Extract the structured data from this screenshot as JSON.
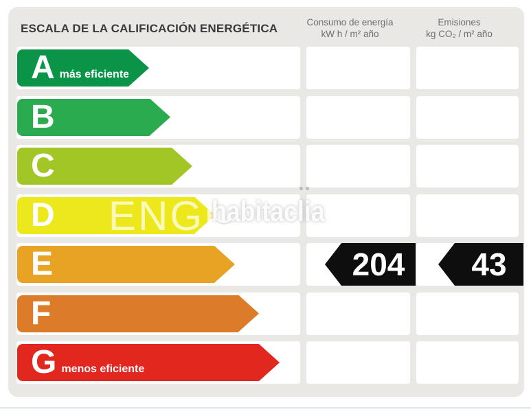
{
  "title": "ESCALA DE LA CALIFICACIÓN ENERGÉTICA",
  "columns": {
    "consumption": {
      "label": "Consumo de energía",
      "units": "kW h / m² año"
    },
    "emissions": {
      "label": "Emisiones",
      "units": "kg CO₂ / m² año"
    }
  },
  "scale": {
    "ratings": [
      {
        "letter": "A",
        "note": "más eficiente",
        "color": "#0a9447"
      },
      {
        "letter": "B",
        "note": "",
        "color": "#2aab4f"
      },
      {
        "letter": "C",
        "note": "",
        "color": "#a2c626"
      },
      {
        "letter": "D",
        "note": "",
        "color": "#ece81c"
      },
      {
        "letter": "E",
        "note": "",
        "color": "#e8a325"
      },
      {
        "letter": "F",
        "note": "",
        "color": "#dc7b28"
      },
      {
        "letter": "G",
        "note": "menos eficiente",
        "color": "#e2271f"
      }
    ]
  },
  "result": {
    "rating_letter": "E",
    "consumption_value": "204",
    "emissions_value": "43",
    "badge_color": "#0e0e0e"
  },
  "watermark": {
    "left_text": "ENGE",
    "right_text": "habitaclia"
  },
  "chart_data": {
    "type": "bar",
    "title": "ESCALA DE LA CALIFICACIÓN ENERGÉTICA",
    "categories": [
      "A",
      "B",
      "C",
      "D",
      "E",
      "F",
      "G"
    ],
    "category_notes": {
      "A": "más eficiente",
      "G": "menos eficiente"
    },
    "series": [
      {
        "name": "Consumo de energía (kW h / m² año)",
        "values": [
          null,
          null,
          null,
          null,
          204,
          null,
          null
        ]
      },
      {
        "name": "Emisiones (kg CO₂ / m² año)",
        "values": [
          null,
          null,
          null,
          null,
          43,
          null,
          null
        ]
      }
    ],
    "assigned_rating": "E",
    "bar_colors": [
      "#0a9447",
      "#2aab4f",
      "#a2c626",
      "#ece81c",
      "#e8a325",
      "#dc7b28",
      "#e2271f"
    ],
    "legend_position": "none",
    "grid": false
  }
}
